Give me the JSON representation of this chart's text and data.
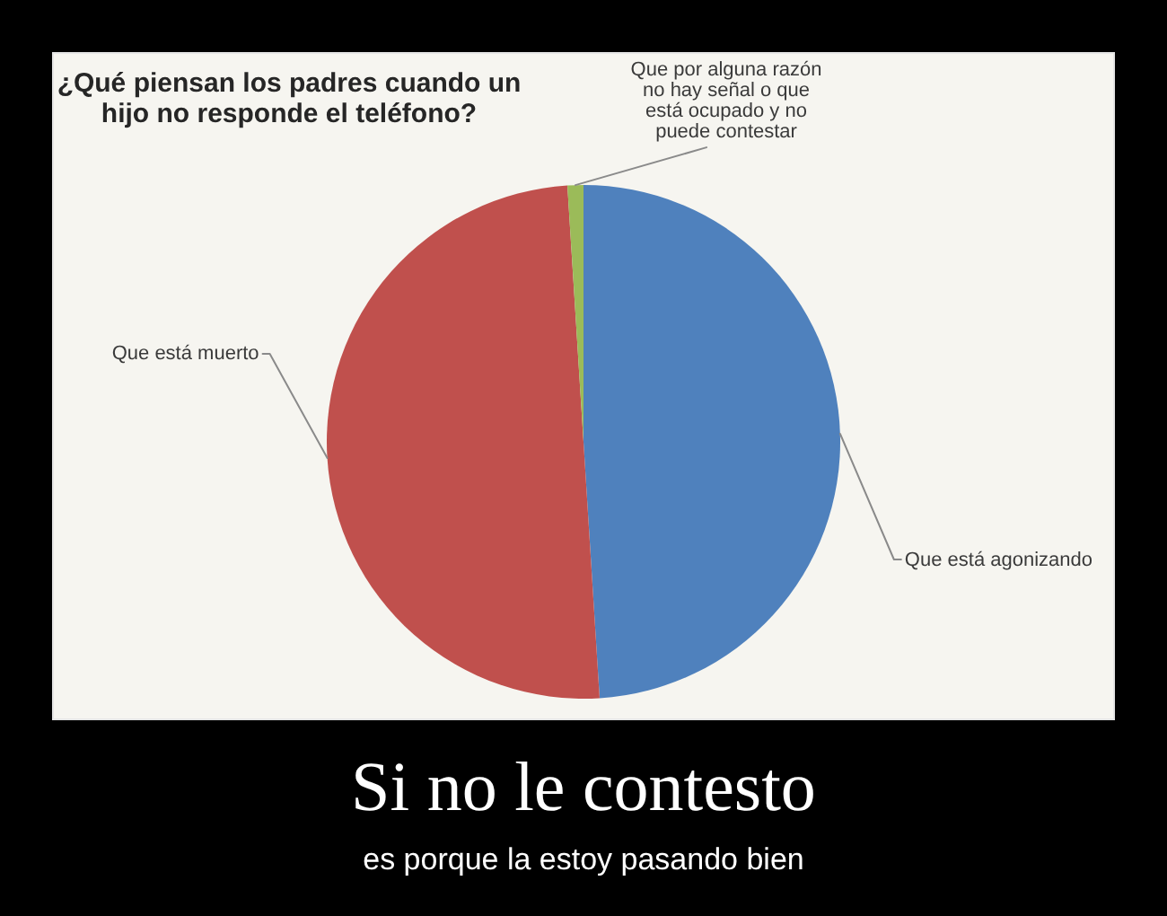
{
  "chart_data": {
    "type": "pie",
    "title": "¿Qué piensan los padres cuando un hijo no responde el teléfono?",
    "categories": [
      "Que está agonizando",
      "Que está muerto",
      "Que por alguna razón no hay señal o que está ocupado y no puede contestar"
    ],
    "values": [
      49,
      50,
      1
    ],
    "colors": [
      "#4f81bd",
      "#c0504d",
      "#9bbb59"
    ],
    "annotations": [
      "Si no le contesto",
      "es porque la estoy pasando bien"
    ]
  }
}
